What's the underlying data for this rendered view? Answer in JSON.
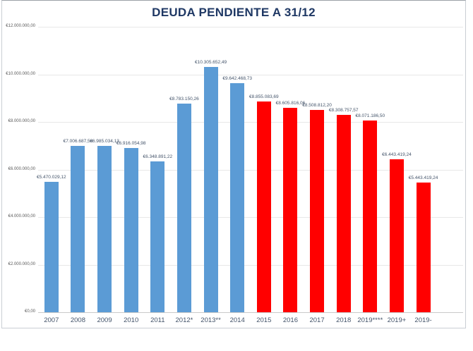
{
  "title": "DEUDA PENDIENTE A 31/12",
  "colors": {
    "past_series": "#5b9bd5",
    "recent_series": "#ff0000",
    "title_text": "#1f3864",
    "axis_text": "#595959",
    "category_text": "#44546a"
  },
  "chart_data": {
    "type": "bar",
    "title": "DEUDA PENDIENTE A 31/12",
    "xlabel": "",
    "ylabel": "",
    "ylim": [
      0,
      12000000
    ],
    "grid": true,
    "legend": "none",
    "categories": [
      "2007",
      "2008",
      "2009",
      "2010",
      "2011",
      "2012*",
      "2013**",
      "2014",
      "2015",
      "2016",
      "2017",
      "2018",
      "2019****",
      "2019+",
      "2019-"
    ],
    "values": [
      5470029.12,
      7006687.58,
      6985034.13,
      6916054.98,
      6348891.22,
      8783150.26,
      10305652.49,
      9642468.73,
      8855083.69,
      8605816.06,
      8508812.2,
      8308757.57,
      8071186.5,
      6443419.24,
      5443419.24
    ],
    "value_labels": [
      "€5.470.029,12",
      "€7.006.687,58",
      "€6.985.034,13",
      "€6.916.054,98",
      "€6.348.891,22",
      "€8.783.150,26",
      "€10.305.652,49",
      "€9.642.468,73",
      "€8.855.083,69",
      "€8.605.816,06",
      "€8.508.812,20",
      "€8.308.757,57",
      "€8.071.186,50",
      "€6.443.419,24",
      "€5.443.419,24"
    ],
    "bar_colors": [
      "#5b9bd5",
      "#5b9bd5",
      "#5b9bd5",
      "#5b9bd5",
      "#5b9bd5",
      "#5b9bd5",
      "#5b9bd5",
      "#5b9bd5",
      "#ff0000",
      "#ff0000",
      "#ff0000",
      "#ff0000",
      "#ff0000",
      "#ff0000",
      "#ff0000"
    ],
    "y_ticks": [
      {
        "value": 12000000,
        "label": "€12.000.000,00"
      },
      {
        "value": 10000000,
        "label": "€10.000.000,00"
      },
      {
        "value": 8000000,
        "label": "€8.000.000,00"
      },
      {
        "value": 6000000,
        "label": "€6.000.000,00"
      },
      {
        "value": 4000000,
        "label": "€4.000.000,00"
      },
      {
        "value": 2000000,
        "label": "€2.000.000,00"
      },
      {
        "value": 0,
        "label": "€0,00"
      }
    ]
  }
}
